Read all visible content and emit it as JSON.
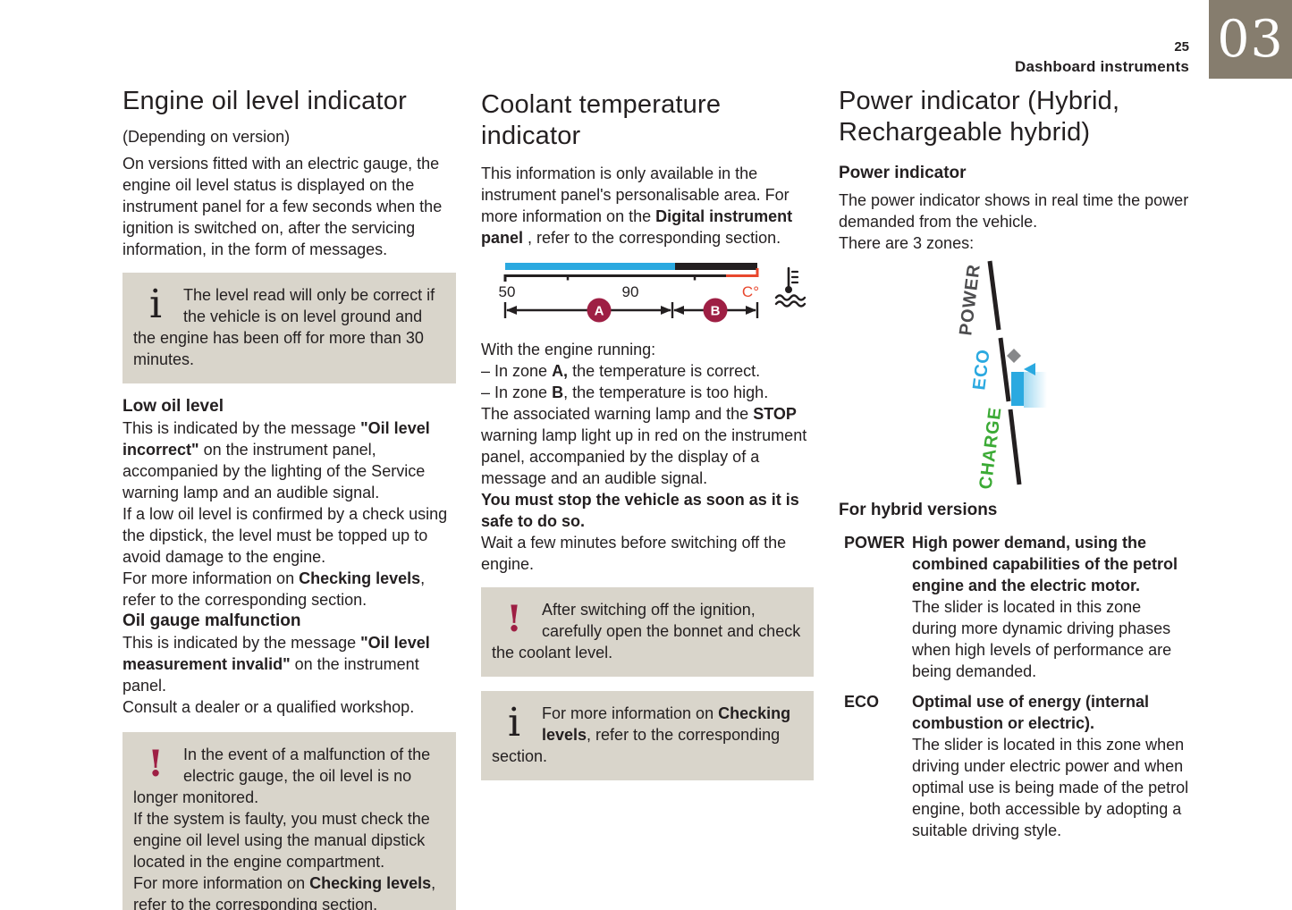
{
  "header": {
    "page_number": "25",
    "section_title": "Dashboard instruments",
    "chapter": "03"
  },
  "icons": {
    "info": "i",
    "warning": "!"
  },
  "colors": {
    "chapter_bg": "#867d6e",
    "box_bg": "#d9d5cb",
    "accent_blue": "#2ba9e0",
    "accent_green": "#3baa35",
    "accent_maroon": "#9e1f44",
    "accent_red": "#e8472d",
    "text": "#231f20"
  },
  "col1": {
    "title": "Engine oil level indicator",
    "subtitle": "(Depending on version)",
    "intro": "On versions fitted with an electric gauge, the engine oil level status is displayed on the instrument panel for a few seconds when the ignition is switched on, after the servicing information, in the form of messages.",
    "info_box": [
      [
        {
          "t": "The level read will only be correct if the vehicle is on level ground and the engine has been off for more than 30 minutes."
        }
      ]
    ],
    "low_oil_heading": "Low oil level",
    "low_oil_paragraphs": [
      [
        {
          "t": "This is indicated by the message "
        },
        {
          "t": "\"Oil level incorrect\"",
          "b": true
        },
        {
          "t": " on the instrument panel, accompanied by the lighting of the Service warning lamp and an audible signal."
        }
      ],
      [
        {
          "t": "If a low oil level is confirmed by a check using the dipstick, the level must be topped up to avoid damage to the engine."
        }
      ],
      [
        {
          "t": "For more information on "
        },
        {
          "t": "Checking levels",
          "b": true
        },
        {
          "t": ", refer to the corresponding section."
        }
      ]
    ],
    "malfunction_heading": "Oil gauge malfunction",
    "malfunction_paragraphs": [
      [
        {
          "t": "This is indicated by the message "
        },
        {
          "t": "\"Oil level measurement invalid\"",
          "b": true
        },
        {
          "t": " on the instrument panel."
        }
      ],
      [
        {
          "t": "Consult a dealer or a qualified workshop."
        }
      ]
    ],
    "warning_box": [
      [
        {
          "t": "In the event of a malfunction of the electric gauge, the oil level is no longer monitored."
        }
      ],
      [
        {
          "t": "If the system is faulty, you must check the engine oil level using the manual dipstick located in the engine compartment."
        }
      ],
      [
        {
          "t": "For more information on "
        },
        {
          "t": "Checking levels",
          "b": true
        },
        {
          "t": ", refer to the corresponding section."
        }
      ]
    ]
  },
  "col2": {
    "title": "Coolant temperature indicator",
    "intro": [
      {
        "t": "This information is only available in the instrument panel's personalisable area. For more information on the "
      },
      {
        "t": "Digital instrument panel",
        "b": true
      },
      {
        "t": " , refer to the corresponding section."
      }
    ],
    "gauge": {
      "tick_low": "50",
      "tick_mid": "90",
      "unit": "C°",
      "zone_a": "A",
      "zone_b": "B"
    },
    "body": [
      [
        {
          "t": "With the engine running:"
        }
      ],
      [
        {
          "t": "– In zone "
        },
        {
          "t": "A,",
          "b": true
        },
        {
          "t": " the temperature is correct."
        }
      ],
      [
        {
          "t": "– In zone "
        },
        {
          "t": "B",
          "b": true
        },
        {
          "t": ", the temperature is too high."
        }
      ],
      [
        {
          "t": "The associated warning lamp and the "
        },
        {
          "t": "STOP",
          "b": true
        },
        {
          "t": " warning lamp light up in red on the instrument panel, accompanied by the display of a message and an audible signal."
        }
      ],
      [
        {
          "t": "You must stop the vehicle as soon as it is safe to do so.",
          "b": true
        }
      ],
      [
        {
          "t": "Wait a few minutes before switching off the engine."
        }
      ]
    ],
    "warning_box": [
      [
        {
          "t": "After switching off the ignition, carefully open the bonnet and check the coolant level."
        }
      ]
    ],
    "info_box": [
      [
        {
          "t": "For more information on "
        },
        {
          "t": "Checking levels",
          "b": true
        },
        {
          "t": ", refer to the corresponding section."
        }
      ]
    ]
  },
  "col3": {
    "title": "Power indicator (Hybrid, Rechargeable hybrid)",
    "subheading": "Power indicator",
    "intro": [
      "The power indicator shows in real time the power demanded from the vehicle.",
      "There are 3 zones:"
    ],
    "diagram": {
      "label_power": "POWER",
      "label_eco": "ECO",
      "label_charge": "CHARGE"
    },
    "hybrid_heading": "For hybrid versions",
    "zones": [
      {
        "name": "POWER",
        "bold": "High power demand, using the combined capabilities of the petrol engine and the electric motor.",
        "text": "The slider is located in this zone during more dynamic driving phases when high levels of performance are being demanded."
      },
      {
        "name": "ECO",
        "bold": "Optimal use of energy (internal combustion or electric).",
        "text": "The slider is located in this zone when driving under electric power and when optimal use is being made of the petrol engine, both accessible by adopting a suitable driving style."
      }
    ]
  }
}
